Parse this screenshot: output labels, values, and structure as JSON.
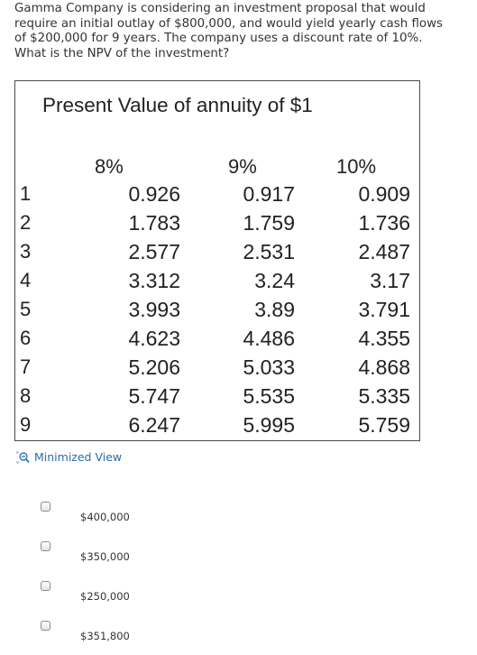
{
  "question": {
    "text": "Gamma Company is considering an investment proposal that would require an initial outlay of $800,000, and would yield yearly cash flows of $200,000 for 9 years. The company uses a discount rate of 10%. What is the NPV of the investment?"
  },
  "table": {
    "title": "Present Value of annuity of $1",
    "columns": [
      "8%",
      "9%",
      "10%"
    ],
    "rows": [
      {
        "n": "1",
        "values": [
          "0.926",
          "0.917",
          "0.909"
        ]
      },
      {
        "n": "2",
        "values": [
          "1.783",
          "1.759",
          "1.736"
        ]
      },
      {
        "n": "3",
        "values": [
          "2.577",
          "2.531",
          "2.487"
        ]
      },
      {
        "n": "4",
        "values": [
          "3.312",
          "3.24",
          "3.17"
        ]
      },
      {
        "n": "5",
        "values": [
          "3.993",
          "3.89",
          "3.791"
        ]
      },
      {
        "n": "6",
        "values": [
          "4.623",
          "4.486",
          "4.355"
        ]
      },
      {
        "n": "7",
        "values": [
          "5.206",
          "5.033",
          "4.868"
        ]
      },
      {
        "n": "8",
        "values": [
          "5.747",
          "5.535",
          "5.335"
        ]
      },
      {
        "n": "9",
        "values": [
          "6.247",
          "5.995",
          "5.759"
        ]
      }
    ]
  },
  "minimized_view": {
    "label": "Minimized View",
    "icon": "zoom-out-icon",
    "color": "#2a6ca8"
  },
  "options": [
    {
      "label": "$400,000",
      "checked": false
    },
    {
      "label": "$350,000",
      "checked": false
    },
    {
      "label": "$250,000",
      "checked": false
    },
    {
      "label": "$351,800",
      "checked": false
    }
  ]
}
